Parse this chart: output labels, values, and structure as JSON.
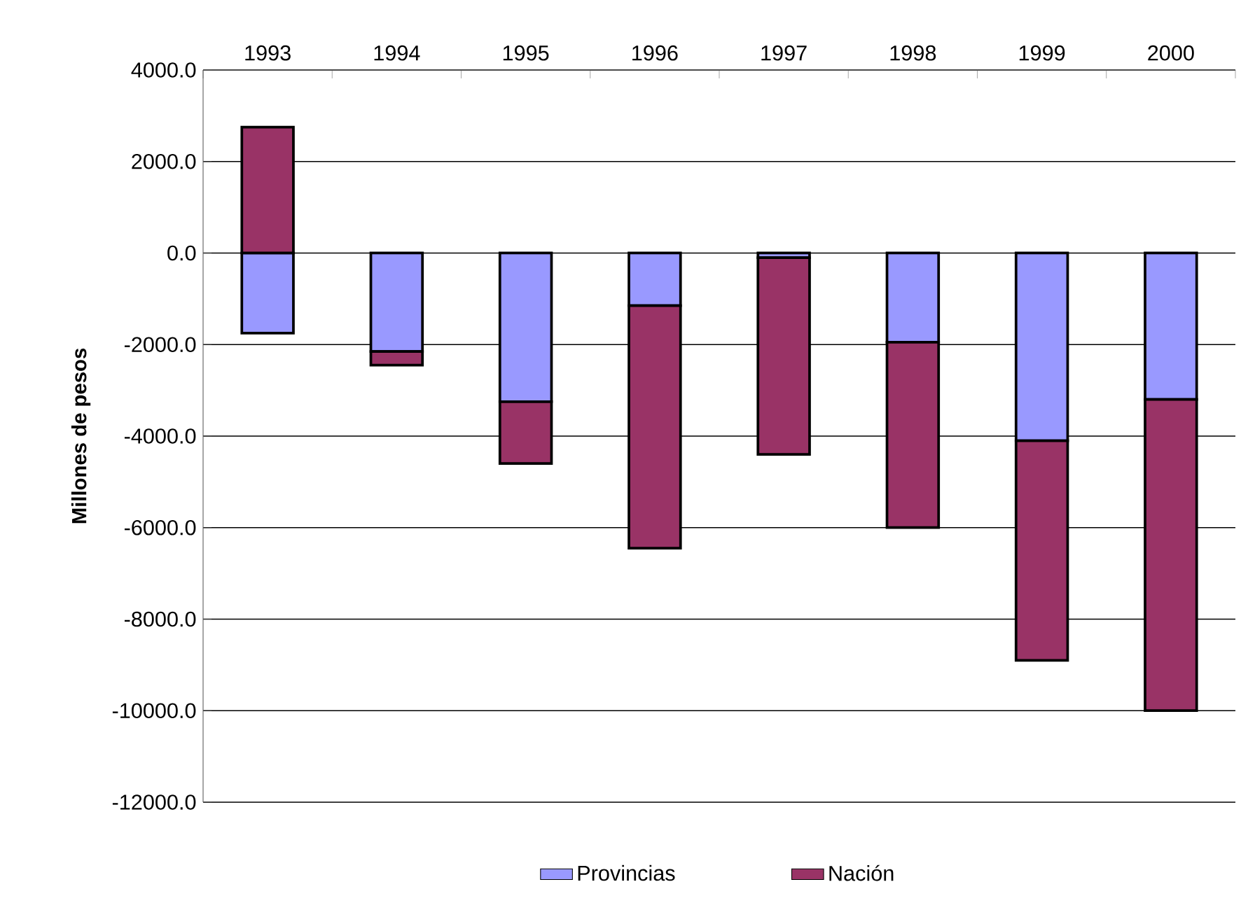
{
  "chart_data": {
    "type": "bar",
    "stacked": true,
    "categories": [
      "1993",
      "1994",
      "1995",
      "1996",
      "1997",
      "1998",
      "1999",
      "2000"
    ],
    "ylabel": "Millones de pesos",
    "series": [
      {
        "name": "Provincias",
        "color": "#9999ff",
        "values": [
          -1750,
          -2150,
          -3250,
          -1150,
          -100,
          -1950,
          -4100,
          -3200
        ]
      },
      {
        "name": "Nación",
        "color": "#993366",
        "values": [
          2750,
          -300,
          -1350,
          -5300,
          -4300,
          -4050,
          -4800,
          -6800
        ]
      }
    ],
    "ylim": [
      -12000,
      4000
    ],
    "yticks": [
      {
        "value": 4000,
        "label": "4000.0"
      },
      {
        "value": 2000,
        "label": "2000.0"
      },
      {
        "value": 0,
        "label": "0.0"
      },
      {
        "value": -2000,
        "label": "-2000.0"
      },
      {
        "value": -4000,
        "label": "-4000.0"
      },
      {
        "value": -6000,
        "label": "-6000.0"
      },
      {
        "value": -8000,
        "label": "-8000.0"
      },
      {
        "value": -10000,
        "label": "-10000.0"
      },
      {
        "value": -12000,
        "label": "-12000.0"
      }
    ],
    "grid": "y",
    "legend": "bottom"
  }
}
